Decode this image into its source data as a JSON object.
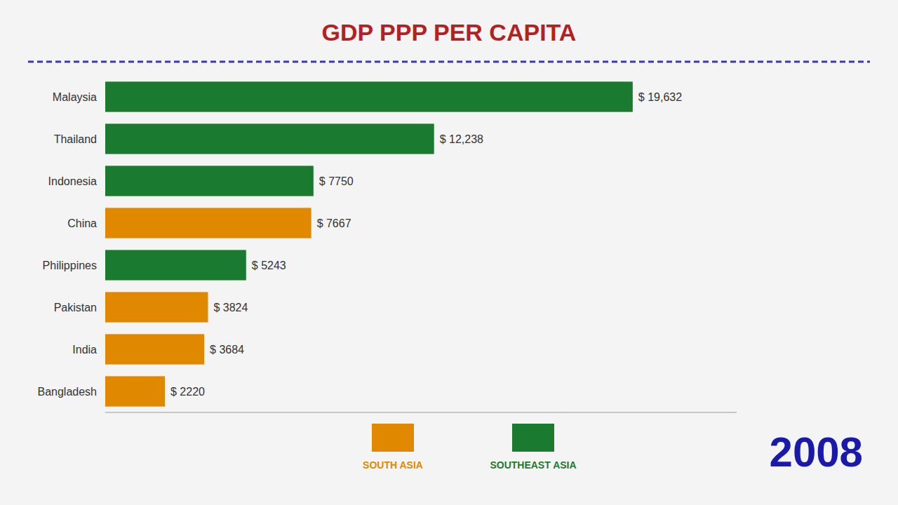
{
  "chart_data": {
    "type": "bar",
    "orientation": "horizontal",
    "stacked": true,
    "title": "GDP PPP PER CAPITA",
    "annotations": [
      "2008"
    ],
    "categories": [
      "Bangladesh",
      "India",
      "Pakistan",
      "Philippines",
      "China",
      "Indonesia",
      "Thailand",
      "Malaysia"
    ],
    "series": [
      {
        "name": "SOUTH ASIA",
        "color": "#e08800",
        "values": [
          2220,
          3684,
          3824,
          null,
          7667,
          null,
          null,
          null
        ],
        "value_labels": [
          "$ 2220",
          "$ 3684",
          "$ 3824",
          null,
          "$ 7667",
          null,
          null,
          null
        ]
      },
      {
        "name": "SOUTHEAST ASIA",
        "color": "#1a7a30",
        "values": [
          null,
          null,
          null,
          5243,
          null,
          7750,
          12238,
          19632
        ],
        "value_labels": [
          null,
          null,
          null,
          "$ 5243",
          null,
          "$ 7750",
          "$ 12,238",
          "$ 19,632"
        ]
      }
    ],
    "xlim": [
      0,
      23500
    ],
    "data_labels": true,
    "tick_labels": "y",
    "grid": false,
    "legend": "bottom"
  }
}
